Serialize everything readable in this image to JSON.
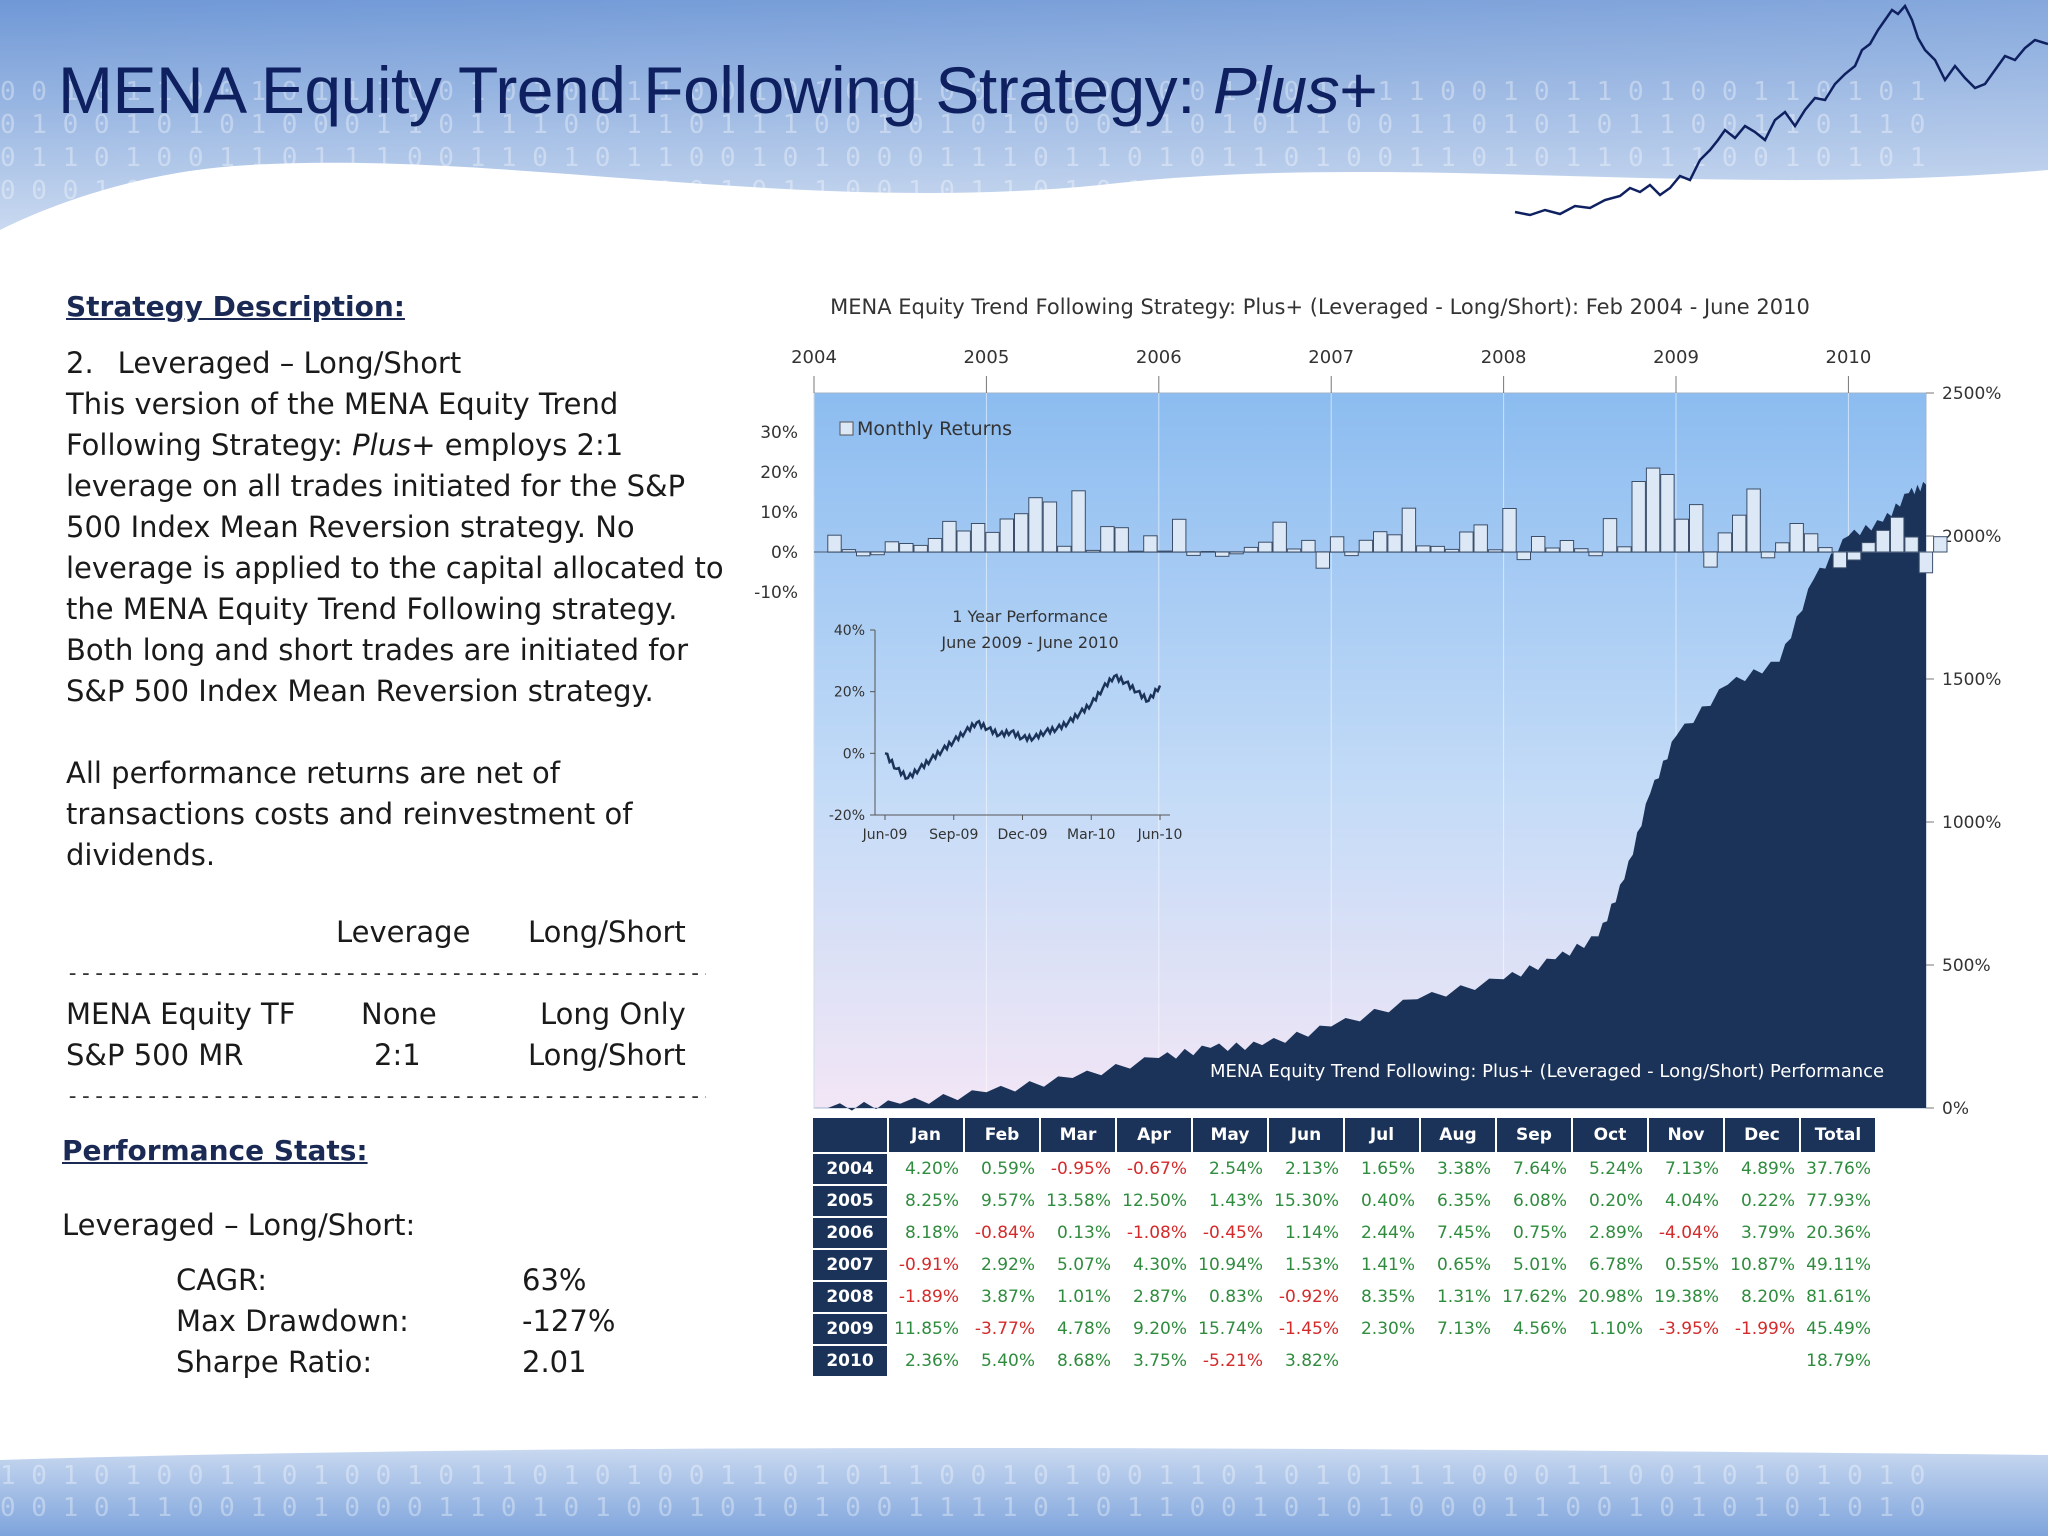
{
  "slide": {
    "title": "MENA Equity Trend Following Strategy: ",
    "title_italic": "Plus",
    "title_suffix": "+"
  },
  "left": {
    "strategy_heading": "Strategy Description:",
    "item_number": "2.",
    "item_label": "Leveraged – Long/Short",
    "desc_1": "This version of the MENA Equity Trend Following Strategy: ",
    "desc_italic": "Plus+",
    "desc_2": " employs 2:1 leverage on all trades initiated for the S&P 500 Index Mean Reversion strategy. No leverage is applied to the capital allocated to the MENA Equity Trend Following strategy.  Both long and short trades are initiated for S&P 500 Index Mean Reversion strategy.",
    "desc_3": "All performance returns are net of transactions costs and reinvestment of dividends.",
    "lev_table": {
      "col_leverage": "Leverage",
      "col_longshort": "Long/Short",
      "separator": "----------------------------------------------------------------",
      "rows": [
        {
          "name": "MENA Equity TF",
          "leverage": "None",
          "ls": "Long Only"
        },
        {
          "name": "S&P 500 MR",
          "leverage": "2:1",
          "ls": "Long/Short"
        }
      ]
    },
    "perf_heading": "Performance Stats:",
    "perf_subheading": "Leveraged – Long/Short:",
    "stats": [
      {
        "label": "CAGR:",
        "value": "63%"
      },
      {
        "label": "Max Drawdown:",
        "value": "-127%"
      },
      {
        "label": "Sharpe Ratio:",
        "value": "2.01"
      }
    ]
  },
  "colors": {
    "dark_navy": "#1b3358",
    "positive": "#2f8c3e",
    "negative": "#d42a2a",
    "plot_top": "#8cbcf0",
    "plot_bottom": "#f2e6f6"
  },
  "chart_data": [
    {
      "type": "area",
      "title": "MENA Equity Trend Following  Strategy: Plus+ (Leveraged - Long/Short): Feb 2004 - June 2010",
      "series_label": "MENA Equity Trend Following: Plus+ (Leveraged - Long/Short) Performance",
      "x_ticks": [
        "2004",
        "2005",
        "2006",
        "2007",
        "2008",
        "2009",
        "2010"
      ],
      "x_range": [
        2004.0,
        2010.45
      ],
      "y_ticks": [
        "0%",
        "500%",
        "1000%",
        "1500%",
        "2000%",
        "2500%"
      ],
      "y_range": [
        0,
        2500
      ],
      "y_axis_side": "right",
      "x": [
        2004.08,
        2004.5,
        2005.0,
        2005.5,
        2006.0,
        2006.3,
        2006.6,
        2007.0,
        2007.5,
        2008.0,
        2008.3,
        2008.55,
        2008.7,
        2008.85,
        2009.0,
        2009.3,
        2009.6,
        2009.8,
        2010.0,
        2010.2,
        2010.35,
        2010.45
      ],
      "values": [
        0,
        15,
        55,
        105,
        175,
        210,
        220,
        285,
        380,
        450,
        520,
        600,
        800,
        1100,
        1300,
        1480,
        1560,
        1850,
        2000,
        2050,
        2150,
        2180
      ]
    },
    {
      "type": "bar",
      "legend": "Monthly Returns",
      "y_ticks": [
        "30%",
        "20%",
        "10%",
        "0%",
        "-10%"
      ],
      "y_range": [
        -10,
        30
      ],
      "x_start": 2004.08,
      "month_step": 0.0833,
      "values": [
        4.2,
        0.59,
        -0.95,
        -0.67,
        2.54,
        2.13,
        1.65,
        3.38,
        7.64,
        5.24,
        7.13,
        4.89,
        8.25,
        9.57,
        13.58,
        12.5,
        1.43,
        15.3,
        0.4,
        6.35,
        6.08,
        0.2,
        4.04,
        0.22,
        8.18,
        -0.84,
        0.13,
        -1.08,
        -0.45,
        1.14,
        2.44,
        7.45,
        0.75,
        2.89,
        -4.04,
        3.79,
        -0.91,
        2.92,
        5.07,
        4.3,
        10.94,
        1.53,
        1.41,
        0.65,
        5.01,
        6.78,
        0.55,
        10.87,
        -1.89,
        3.87,
        1.01,
        2.87,
        0.83,
        -0.92,
        8.35,
        1.31,
        17.62,
        20.98,
        19.38,
        8.2,
        11.85,
        -3.77,
        4.78,
        9.2,
        15.74,
        -1.45,
        2.3,
        7.13,
        4.56,
        1.1,
        -3.95,
        -1.99,
        2.36,
        5.4,
        8.68,
        3.75,
        -5.21,
        3.82
      ]
    },
    {
      "type": "line",
      "title_line1": "1 Year Performance",
      "title_line2": "June 2009 - June 2010",
      "x_ticks": [
        "Jun-09",
        "Sep-09",
        "Dec-09",
        "Mar-10",
        "Jun-10"
      ],
      "y_ticks": [
        "40%",
        "20%",
        "0%",
        "-20%"
      ],
      "y_range": [
        -20,
        40
      ],
      "x": [
        0,
        0.5,
        1,
        1.5,
        2,
        2.5,
        3,
        3.5,
        4,
        4.5,
        5,
        5.5,
        6,
        6.5,
        7,
        7.5,
        8,
        8.5,
        9,
        9.5,
        10,
        10.5,
        11,
        11.5,
        12
      ],
      "values": [
        0,
        -5,
        -8,
        -5,
        -2,
        1,
        4,
        7,
        10,
        8,
        6,
        7,
        5,
        5,
        7,
        8,
        10,
        13,
        16,
        21,
        25,
        23,
        20,
        17,
        22
      ]
    },
    {
      "type": "table",
      "columns": [
        "",
        "Jan",
        "Feb",
        "Mar",
        "Apr",
        "May",
        "Jun",
        "Jul",
        "Aug",
        "Sep",
        "Oct",
        "Nov",
        "Dec",
        "Total"
      ],
      "rows": [
        [
          "2004",
          "4.20%",
          "0.59%",
          "-0.95%",
          "-0.67%",
          "2.54%",
          "2.13%",
          "1.65%",
          "3.38%",
          "7.64%",
          "5.24%",
          "7.13%",
          "4.89%",
          "37.76%"
        ],
        [
          "2005",
          "8.25%",
          "9.57%",
          "13.58%",
          "12.50%",
          "1.43%",
          "15.30%",
          "0.40%",
          "6.35%",
          "6.08%",
          "0.20%",
          "4.04%",
          "0.22%",
          "77.93%"
        ],
        [
          "2006",
          "8.18%",
          "-0.84%",
          "0.13%",
          "-1.08%",
          "-0.45%",
          "1.14%",
          "2.44%",
          "7.45%",
          "0.75%",
          "2.89%",
          "-4.04%",
          "3.79%",
          "20.36%"
        ],
        [
          "2007",
          "-0.91%",
          "2.92%",
          "5.07%",
          "4.30%",
          "10.94%",
          "1.53%",
          "1.41%",
          "0.65%",
          "5.01%",
          "6.78%",
          "0.55%",
          "10.87%",
          "49.11%"
        ],
        [
          "2008",
          "-1.89%",
          "3.87%",
          "1.01%",
          "2.87%",
          "0.83%",
          "-0.92%",
          "8.35%",
          "1.31%",
          "17.62%",
          "20.98%",
          "19.38%",
          "8.20%",
          "81.61%"
        ],
        [
          "2009",
          "11.85%",
          "-3.77%",
          "4.78%",
          "9.20%",
          "15.74%",
          "-1.45%",
          "2.30%",
          "7.13%",
          "4.56%",
          "1.10%",
          "-3.95%",
          "-1.99%",
          "45.49%"
        ],
        [
          "2010",
          "2.36%",
          "5.40%",
          "8.68%",
          "3.75%",
          "-5.21%",
          "3.82%",
          "",
          "",
          "",
          "",
          "",
          "",
          "18.79%"
        ]
      ]
    }
  ]
}
